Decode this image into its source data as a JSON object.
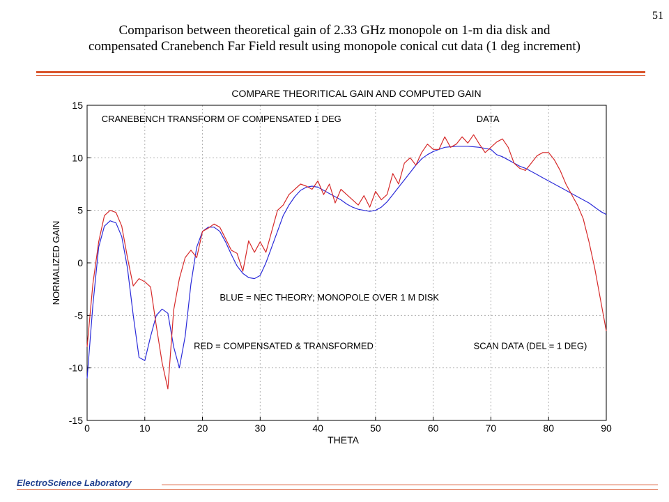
{
  "slide": {
    "page_number": "51",
    "title_line1": "Comparison between theoretical gain of 2.33 GHz monopole on 1-m dia disk and",
    "title_line2": "compensated Cranebench Far Field result using monopole conical cut data (1 deg increment)",
    "footer": "ElectroScience Laboratory"
  },
  "colors": {
    "theory": "#2b2bd9",
    "measured": "#d62a2a",
    "accent": "#d9542b",
    "footer_text": "#1f3f8f"
  },
  "chart_data": {
    "type": "line",
    "title": "COMPARE THEORITICAL GAIN AND COMPUTED GAIN",
    "xlabel": "THETA",
    "ylabel": "NORMALIZED GAIN",
    "xlim": [
      0,
      90
    ],
    "ylim": [
      -15,
      15
    ],
    "xticks": [
      0,
      10,
      20,
      30,
      40,
      50,
      60,
      70,
      80,
      90
    ],
    "yticks": [
      -15,
      -10,
      -5,
      0,
      5,
      10,
      15
    ],
    "grid": true,
    "annotations": [
      {
        "text": "CRANEBENCH TRANSFORM OF COMPENSATED 1 DEG",
        "x": 2.5,
        "y": 13.4
      },
      {
        "text": "DATA",
        "x": 67.5,
        "y": 13.4
      },
      {
        "text": "BLUE = NEC THEORY; MONOPOLE OVER 1 M DISK",
        "x": 23,
        "y": -3.6
      },
      {
        "text": "RED = COMPENSATED & TRANSFORMED",
        "x": 18.5,
        "y": -8.2
      },
      {
        "text": "SCAN DATA (DEL = 1 DEG)",
        "x": 67,
        "y": -8.2
      }
    ],
    "series": [
      {
        "key": "theory",
        "x": [
          0,
          1,
          2,
          3,
          4,
          5,
          6,
          7,
          8,
          9,
          10,
          11,
          12,
          13,
          14,
          15,
          16,
          17,
          18,
          19,
          20,
          21,
          22,
          23,
          24,
          25,
          26,
          27,
          28,
          29,
          30,
          31,
          32,
          33,
          34,
          35,
          36,
          37,
          38,
          39,
          40,
          41,
          42,
          43,
          44,
          45,
          46,
          47,
          48,
          49,
          50,
          51,
          52,
          53,
          54,
          55,
          56,
          57,
          58,
          59,
          60,
          61,
          62,
          63,
          64,
          65,
          66,
          67,
          68,
          69,
          70,
          71,
          72,
          73,
          74,
          75,
          76,
          77,
          78,
          79,
          80,
          81,
          82,
          83,
          84,
          85,
          86,
          87,
          88,
          89,
          90
        ],
        "y": [
          -11,
          -4,
          1.5,
          3.5,
          4,
          3.8,
          2.5,
          -0.5,
          -5,
          -9,
          -9.3,
          -7,
          -5,
          -4.4,
          -4.8,
          -8,
          -10,
          -7,
          -2,
          1.5,
          3,
          3.4,
          3.4,
          3,
          2,
          0.8,
          -0.3,
          -1,
          -1.4,
          -1.5,
          -1.2,
          0,
          1.5,
          3,
          4.5,
          5.5,
          6.3,
          6.9,
          7.2,
          7.3,
          7.2,
          6.9,
          6.6,
          6.3,
          6,
          5.6,
          5.3,
          5.1,
          5,
          4.9,
          5,
          5.3,
          5.8,
          6.5,
          7.2,
          7.9,
          8.6,
          9.3,
          9.9,
          10.3,
          10.6,
          10.8,
          11,
          11.05,
          11.1,
          11.1,
          11.1,
          11.05,
          11,
          10.9,
          10.8,
          10.3,
          10.1,
          9.8,
          9.5,
          9.2,
          9,
          8.7,
          8.4,
          8.1,
          7.8,
          7.5,
          7.2,
          6.9,
          6.6,
          6.3,
          6,
          5.7,
          5.3,
          4.9,
          4.6
        ]
      },
      {
        "key": "measured",
        "x": [
          0,
          1,
          2,
          3,
          4,
          5,
          6,
          7,
          8,
          9,
          10,
          11,
          12,
          13,
          14,
          15,
          16,
          17,
          18,
          19,
          20,
          21,
          22,
          23,
          24,
          25,
          26,
          27,
          28,
          29,
          30,
          31,
          32,
          33,
          34,
          35,
          36,
          37,
          38,
          39,
          40,
          41,
          42,
          43,
          44,
          45,
          46,
          47,
          48,
          49,
          50,
          51,
          52,
          53,
          54,
          55,
          56,
          57,
          58,
          59,
          60,
          61,
          62,
          63,
          64,
          65,
          66,
          67,
          68,
          69,
          70,
          71,
          72,
          73,
          74,
          75,
          76,
          77,
          78,
          79,
          80,
          81,
          82,
          83,
          84,
          85,
          86,
          87,
          88,
          89,
          90
        ],
        "y": [
          -8,
          -2,
          2,
          4.5,
          5,
          4.8,
          3.5,
          0.5,
          -2.2,
          -1.5,
          -1.8,
          -2.3,
          -6,
          -9.5,
          -12,
          -4.5,
          -1.5,
          0.5,
          1.2,
          0.5,
          3,
          3.3,
          3.7,
          3.4,
          2.3,
          1.2,
          0.9,
          -0.8,
          2.1,
          1,
          2,
          1,
          3,
          5,
          5.5,
          6.5,
          7,
          7.5,
          7.3,
          7,
          7.8,
          6.5,
          7.5,
          5.7,
          7,
          6.5,
          6,
          5.5,
          6.4,
          5.3,
          6.8,
          6,
          6.5,
          8.5,
          7.5,
          9.5,
          10,
          9.3,
          10.5,
          11.3,
          10.8,
          10.8,
          12,
          11,
          11.3,
          12,
          11.4,
          12.2,
          11.3,
          10.5,
          11,
          11.5,
          11.8,
          11,
          9.5,
          9,
          8.8,
          9.5,
          10.2,
          10.5,
          10.5,
          9.8,
          8.8,
          7.5,
          6.5,
          5.5,
          4.2,
          2,
          -0.5,
          -3.5,
          -6.5
        ]
      }
    ]
  }
}
